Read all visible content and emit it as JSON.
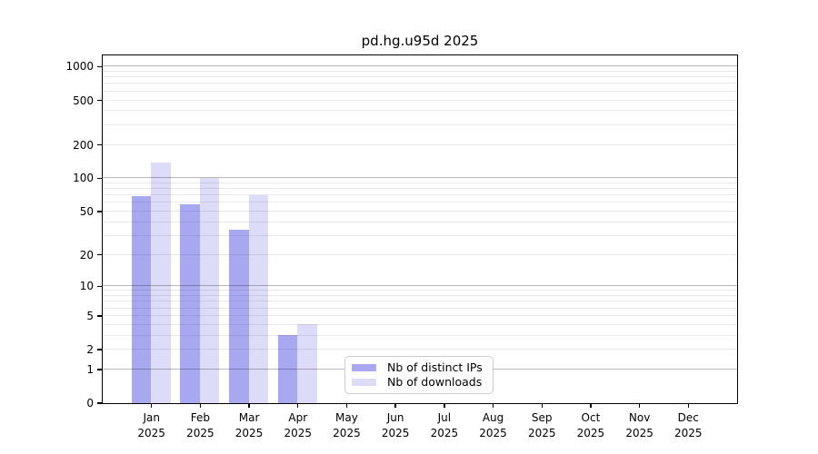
{
  "title": "pd.hg.u95d 2025",
  "chart_data": {
    "type": "bar",
    "title": "pd.hg.u95d 2025",
    "year_label": "2025",
    "categories": [
      "Jan",
      "Feb",
      "Mar",
      "Apr",
      "May",
      "Jun",
      "Jul",
      "Aug",
      "Sep",
      "Oct",
      "Nov",
      "Dec"
    ],
    "series": [
      {
        "name": "Nb of distinct IPs",
        "color": "#a8a8f0",
        "values": [
          68,
          58,
          34,
          3,
          0,
          0,
          0,
          0,
          0,
          0,
          0,
          0
        ]
      },
      {
        "name": "Nb of downloads",
        "color": "#dcdcf8",
        "values": [
          137,
          100,
          70,
          4,
          0,
          0,
          0,
          0,
          0,
          0,
          0,
          0
        ]
      }
    ],
    "yscale": "log1p",
    "ylim": [
      0,
      1260
    ],
    "y_ticks": [
      0,
      1,
      2,
      5,
      10,
      20,
      50,
      100,
      200,
      500,
      1000
    ],
    "y_major_gridlines": [
      1,
      10,
      100,
      1000
    ],
    "y_minor_gridlines": [
      2,
      3,
      4,
      5,
      6,
      7,
      8,
      9,
      20,
      30,
      40,
      50,
      60,
      70,
      80,
      90,
      200,
      300,
      400,
      500,
      600,
      700,
      800,
      900
    ],
    "grid": "horizontal only",
    "legend_position": "lower center",
    "xlabel": "",
    "ylabel": ""
  },
  "legend": {
    "entries": [
      "Nb of distinct IPs",
      "Nb of downloads"
    ]
  },
  "colors": {
    "background": "#ffffff",
    "bar_distinct_ips": "#a8a8f0",
    "bar_downloads": "#dcdcf8",
    "grid_major": "#b8b8b8",
    "grid_minor": "#e8e8e8",
    "axis": "#000000",
    "text": "#000000",
    "legend_border": "#cccccc"
  }
}
